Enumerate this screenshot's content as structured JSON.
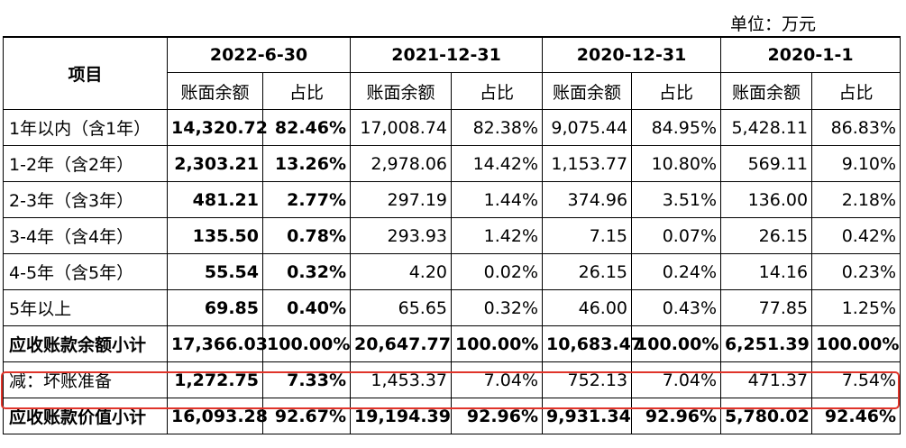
{
  "unit_label": "单位：万元",
  "header": {
    "item_label": "项目",
    "periods": [
      "2022-6-30",
      "2021-12-31",
      "2020-12-31",
      "2020-1-1"
    ],
    "balance_label": "账面余额",
    "ratio_label": "占比"
  },
  "rows": [
    {
      "label": "1年以内（含1年）",
      "v1": "14,320.72",
      "r1": "82.46%",
      "v2": "17,008.74",
      "r2": "82.38%",
      "v3": "9,075.44",
      "r3": "84.95%",
      "v4": "5,428.11",
      "r4": "86.83%"
    },
    {
      "label": "1-2年（含2年）",
      "v1": "2,303.21",
      "r1": "13.26%",
      "v2": "2,978.06",
      "r2": "14.42%",
      "v3": "1,153.77",
      "r3": "10.80%",
      "v4": "569.11",
      "r4": "9.10%"
    },
    {
      "label": "2-3年（含3年）",
      "v1": "481.21",
      "r1": "2.77%",
      "v2": "297.19",
      "r2": "1.44%",
      "v3": "374.96",
      "r3": "3.51%",
      "v4": "136.00",
      "r4": "2.18%"
    },
    {
      "label": "3-4年（含4年）",
      "v1": "135.50",
      "r1": "0.78%",
      "v2": "293.93",
      "r2": "1.42%",
      "v3": "7.15",
      "r3": "0.07%",
      "v4": "26.15",
      "r4": "0.42%"
    },
    {
      "label": "4-5年（含5年）",
      "v1": "55.54",
      "r1": "0.32%",
      "v2": "4.20",
      "r2": "0.02%",
      "v3": "26.15",
      "r3": "0.24%",
      "v4": "14.16",
      "r4": "0.23%"
    },
    {
      "label": "5年以上",
      "v1": "69.85",
      "r1": "0.40%",
      "v2": "65.65",
      "r2": "0.32%",
      "v3": "46.00",
      "r3": "0.43%",
      "v4": "77.85",
      "r4": "1.25%"
    },
    {
      "label": "应收账款余额小计",
      "v1": "17,366.03",
      "r1": "100.00%",
      "v2": "20,647.77",
      "r2": "100.00%",
      "v3": "10,683.47",
      "r3": "100.00%",
      "v4": "6,251.39",
      "r4": "100.00%"
    },
    {
      "label": "减：坏账准备",
      "v1": "1,272.75",
      "r1": "7.33%",
      "v2": "1,453.37",
      "r2": "7.04%",
      "v3": "752.13",
      "r3": "7.04%",
      "v4": "471.37",
      "r4": "7.54%"
    },
    {
      "label": "应收账款价值小计",
      "v1": "16,093.28",
      "r1": "92.67%",
      "v2": "19,194.39",
      "r2": "92.96%",
      "v3": "9,931.34",
      "r3": "92.96%",
      "v4": "5,780.02",
      "r4": "92.46%"
    }
  ],
  "highlight_color": "#e0342a"
}
